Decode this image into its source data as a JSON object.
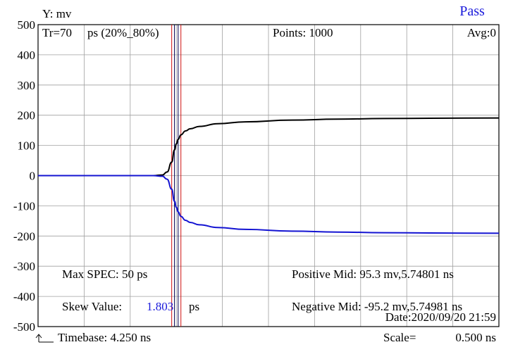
{
  "header": {
    "y_unit_label": "Y: mv",
    "status": "Pass",
    "status_color": "#1a1adb"
  },
  "info_bar": {
    "rise_time": "Tr=70",
    "rise_time_unit": "ps (20%_80%)",
    "points": "Points: 1000",
    "avg": "Avg:0"
  },
  "annotations": {
    "max_spec": "Max SPEC: 50 ps",
    "skew_label": "Skew Value:",
    "skew_value": "1.803",
    "skew_unit": "ps",
    "positive_mid": "Positive Mid: 95.3 mv,5.74801 ns",
    "negative_mid": "Negative Mid: -95.2 mv,5.74981 ns",
    "date": "Date:2020/09/20 21:59"
  },
  "footer": {
    "timebase": "Timebase: 4.250  ns",
    "scale_label": "Scale=",
    "scale_value": "0.500 ns"
  },
  "colors": {
    "positive_trace": "#000000",
    "negative_trace": "#1414d2",
    "cursor_red": "#d01010",
    "cursor_dark": "#000050",
    "grid": "#a0a0a0",
    "skew_value": "#1a1adb"
  },
  "chart_data": {
    "type": "line",
    "title": "",
    "xlabel": "",
    "ylabel": "Y: mv",
    "xlim": [
      4.25,
      9.25
    ],
    "ylim": [
      -500,
      500
    ],
    "yticks": [
      500,
      400,
      300,
      200,
      100,
      0,
      -100,
      -200,
      -300,
      -400,
      -500
    ],
    "x_divisions": 10,
    "grid": true,
    "cursors_x": [
      5.7,
      5.73,
      5.77,
      5.8
    ],
    "series": [
      {
        "color": "#000000",
        "x": [
          4.25,
          5.0,
          5.5,
          5.6,
          5.65,
          5.7,
          5.73,
          5.75,
          5.77,
          5.8,
          5.85,
          5.9,
          6.0,
          6.2,
          6.5,
          7.0,
          7.5,
          8.0,
          8.5,
          9.25
        ],
        "values": [
          0,
          0,
          0,
          2,
          12,
          45,
          85,
          105,
          120,
          135,
          148,
          155,
          163,
          172,
          178,
          184,
          187,
          189,
          190,
          191
        ]
      },
      {
        "color": "#1414d2",
        "x": [
          4.25,
          5.0,
          5.5,
          5.6,
          5.65,
          5.7,
          5.73,
          5.75,
          5.77,
          5.8,
          5.85,
          5.9,
          6.0,
          6.2,
          6.5,
          7.0,
          7.5,
          8.0,
          8.5,
          9.25
        ],
        "values": [
          0,
          0,
          0,
          -2,
          -12,
          -45,
          -85,
          -105,
          -120,
          -135,
          -148,
          -155,
          -163,
          -172,
          -178,
          -184,
          -187,
          -189,
          -190,
          -191
        ]
      }
    ]
  }
}
